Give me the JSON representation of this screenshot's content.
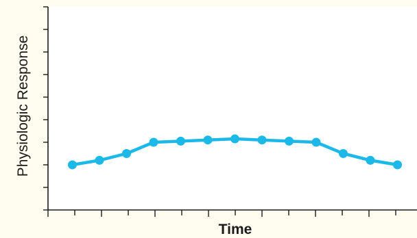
{
  "chart_data": {
    "type": "line",
    "title": "",
    "xlabel": "Time",
    "ylabel": "Physiologic Response",
    "x": [
      1,
      2,
      3,
      4,
      5,
      6,
      7,
      8,
      9,
      10,
      11,
      12,
      13
    ],
    "series": [
      {
        "values": [
          2.0,
          2.2,
          2.5,
          3.0,
          3.05,
          3.1,
          3.15,
          3.1,
          3.05,
          3.0,
          2.5,
          2.2,
          2.0
        ]
      }
    ],
    "xlim": [
      0,
      14
    ],
    "ylim": [
      0,
      9
    ],
    "grid": false,
    "color": "#1cb8e8"
  }
}
